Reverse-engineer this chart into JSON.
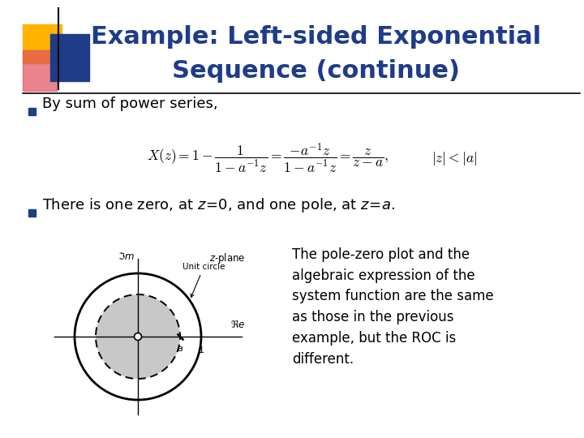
{
  "title_line1": "Example: Left-sided Exponential",
  "title_line2": "Sequence (continue)",
  "title_color": "#1F3C88",
  "bg_color": "#FFFFFF",
  "bullet1": "By sum of power series,",
  "caption": "The pole-zero plot and the\nalgebraic expression of the\nsystem function are the same\nas those in the previous\nexample, but the ROC is\ndifferent.",
  "bullet_color": "#1F3C88",
  "text_color": "#000000",
  "formula_color": "#000000",
  "divider_color": "#000000",
  "square_yellow": "#FFB300",
  "square_red": "#E05060",
  "square_blue": "#1F3C88",
  "title_fontsize": 22,
  "body_fontsize": 13,
  "caption_fontsize": 12
}
